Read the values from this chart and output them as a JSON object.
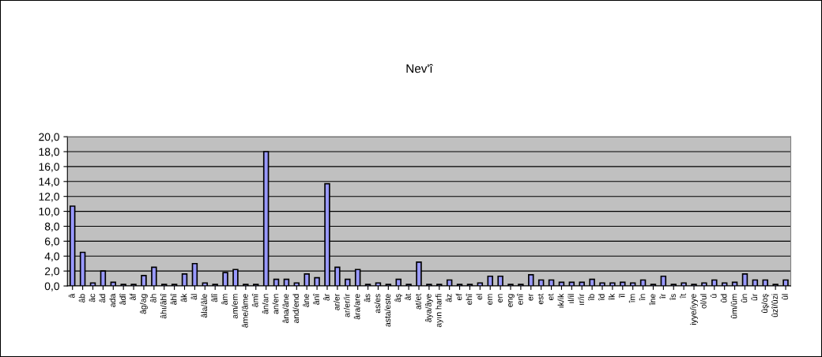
{
  "chart_data": {
    "type": "bar",
    "title": "Nev'î",
    "categories": [
      "â",
      "âb",
      "âc",
      "âd",
      "ada",
      "âdî",
      "âf",
      "âg/ag",
      "âh",
      "âhı/âhî",
      "âhî",
      "âk",
      "âl",
      "âla/âle",
      "âlî",
      "âm",
      "am/em",
      "âme/âme",
      "âmî",
      "ân/an",
      "an/en",
      "âna/âne",
      "and/end",
      "âne",
      "ânî",
      "âr",
      "ar/er",
      "ar/er/ir",
      "âra/are",
      "âs",
      "as/es",
      "asta/este",
      "âş",
      "ât",
      "at/et",
      "âya/âye",
      "ayın harfi",
      "âz",
      "ef",
      "ehî",
      "el",
      "em",
      "en",
      "eng",
      "enî",
      "er",
      "est",
      "et",
      "ık/ik",
      "ıl/il",
      "ır/ir",
      "îb",
      "îd",
      "îk",
      "îl",
      "îm",
      "în",
      "îne",
      "îr",
      "îs",
      "ît",
      "iyye/iyye",
      "ol/ul",
      "û",
      "ûd",
      "ûm/ûm",
      "ûn",
      "ûr",
      "ûş/oş",
      "ûzî/ûzi",
      "ûl"
    ],
    "values": [
      10.7,
      4.5,
      0.4,
      2.0,
      0.5,
      0.2,
      0.2,
      1.4,
      2.5,
      0.2,
      0.2,
      1.6,
      3.0,
      0.4,
      0.2,
      1.8,
      2.2,
      0.2,
      0.2,
      18.0,
      0.9,
      0.9,
      0.4,
      1.6,
      1.1,
      13.7,
      2.5,
      0.9,
      2.2,
      0.2,
      0.4,
      0.2,
      0.9,
      0.2,
      3.2,
      0.2,
      0.2,
      0.8,
      0.2,
      0.2,
      0.4,
      1.3,
      1.3,
      0.2,
      0.2,
      1.5,
      0.8,
      0.8,
      0.5,
      0.5,
      0.5,
      0.9,
      0.4,
      0.4,
      0.5,
      0.4,
      0.8,
      0.2,
      1.3,
      0.2,
      0.4,
      0.2,
      0.4,
      0.8,
      0.4,
      0.5,
      1.6,
      0.8,
      0.8,
      0.2,
      0.8
    ],
    "color": "#9999ff",
    "ylim": [
      0,
      20
    ],
    "yticks": [
      {
        "value": 0,
        "label": "0,0"
      },
      {
        "value": 2,
        "label": "2,0"
      },
      {
        "value": 4,
        "label": "4,0"
      },
      {
        "value": 6,
        "label": "6,0"
      },
      {
        "value": 8,
        "label": "8,0"
      },
      {
        "value": 10,
        "label": "10,0"
      },
      {
        "value": 12,
        "label": "12,0"
      },
      {
        "value": 14,
        "label": "14,0"
      },
      {
        "value": 16,
        "label": "16,0"
      },
      {
        "value": 18,
        "label": "18,0"
      },
      {
        "value": 20,
        "label": "20,0"
      }
    ],
    "grid": "y",
    "legend": false
  }
}
